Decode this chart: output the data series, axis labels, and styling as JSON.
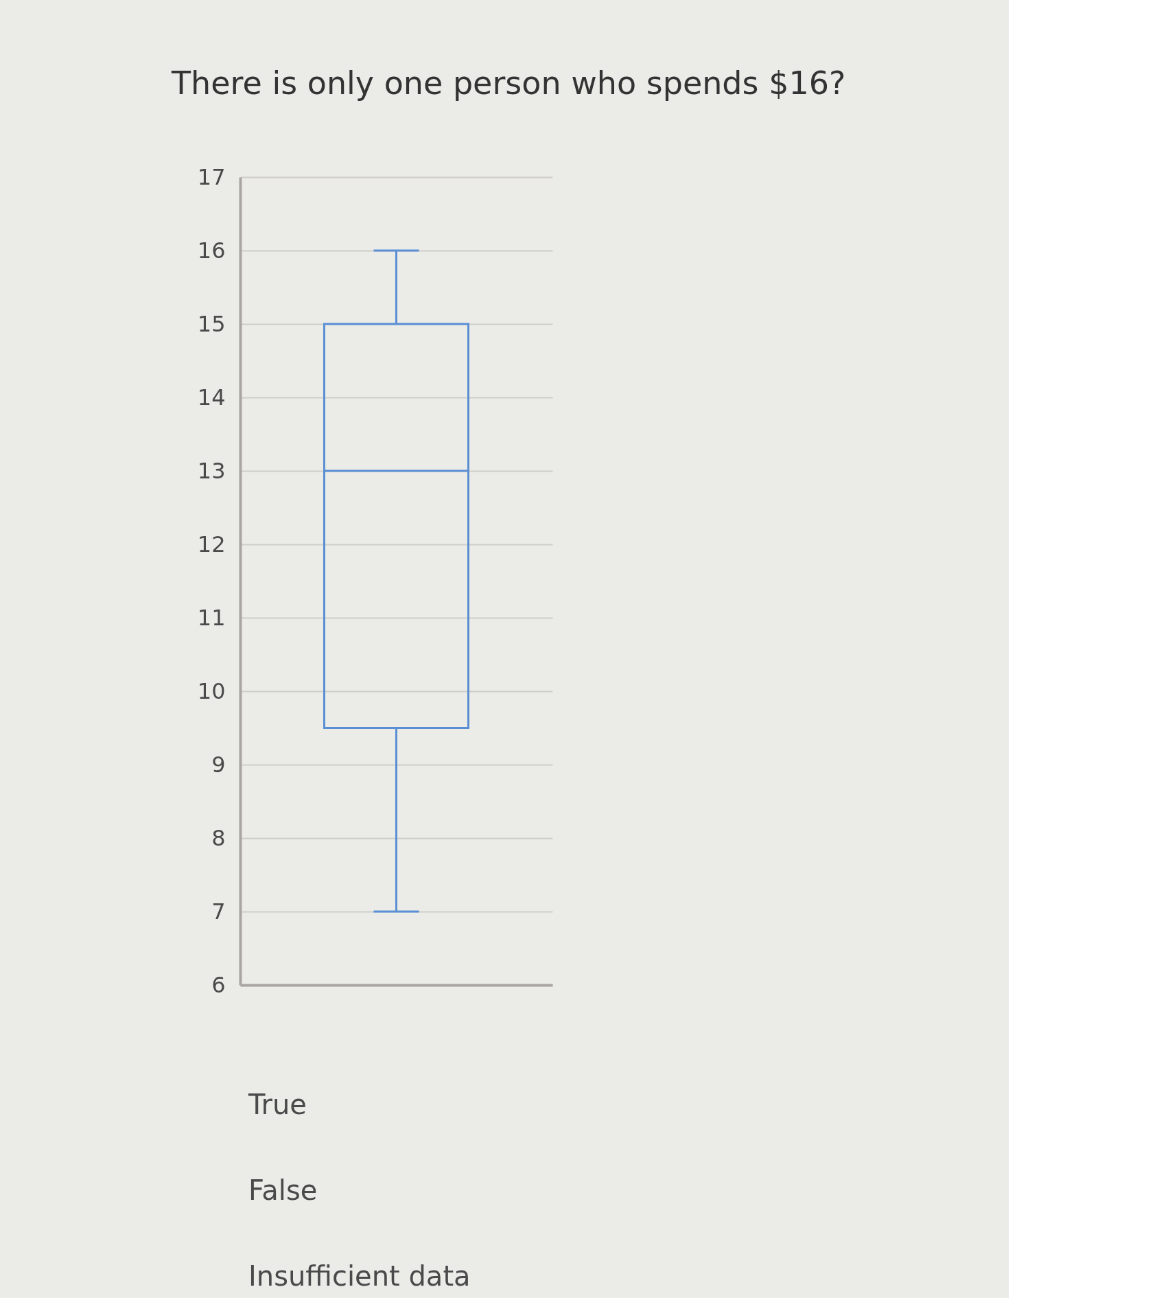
{
  "chart_data": {
    "type": "box",
    "title": "There is only one person who spends $16?",
    "categories": [
      null
    ],
    "series": [
      {
        "color": "#5b8fd4",
        "boxes": [
          {
            "low": 7,
            "q1": 9.5,
            "median": 13,
            "q3": 15,
            "high": 16
          }
        ]
      }
    ],
    "ylim": [
      6,
      17
    ],
    "yticks": [
      6,
      7,
      8,
      9,
      10,
      11,
      12,
      13,
      14,
      15,
      16,
      17
    ],
    "grid": "y",
    "tick_labels": "y",
    "annotations": [
      "True",
      "False",
      "Insufficient data"
    ]
  }
}
